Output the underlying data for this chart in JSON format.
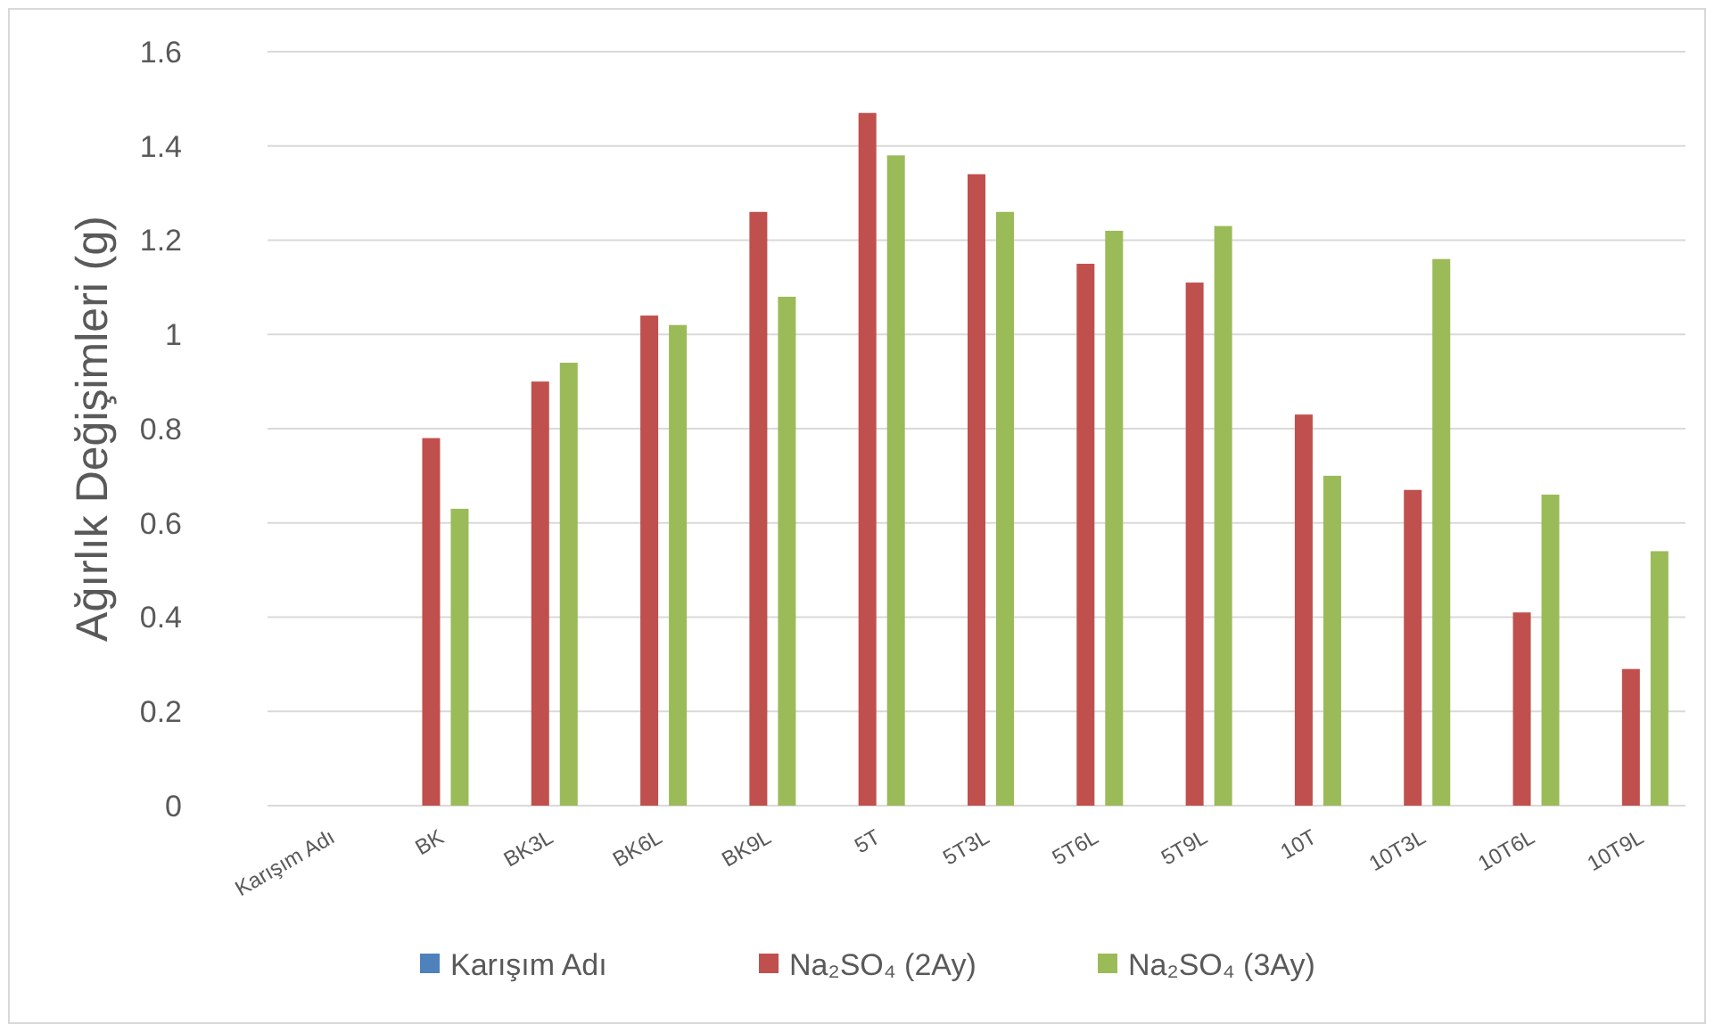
{
  "chart_data": {
    "type": "bar",
    "ylabel": "Ağırlık Değişimleri (g)",
    "categories": [
      "Karışım Adı",
      "BK",
      "BK3L",
      "BK6L",
      "BK9L",
      "5T",
      "5T3L",
      "5T6L",
      "5T9L",
      "10T",
      "10T3L",
      "10T6L",
      "10T9L"
    ],
    "series": [
      {
        "name": "Karışım Adı",
        "color": "#4f81bd",
        "values": [
          null,
          null,
          null,
          null,
          null,
          null,
          null,
          null,
          null,
          null,
          null,
          null,
          null
        ]
      },
      {
        "name": "Na₂SO₄ (2Ay)",
        "color": "#c0504d",
        "values": [
          null,
          0.78,
          0.9,
          1.04,
          1.26,
          1.47,
          1.34,
          1.15,
          1.11,
          0.83,
          0.67,
          0.41,
          0.29
        ]
      },
      {
        "name": "Na₂SO₄ (3Ay)",
        "color": "#9bbb59",
        "values": [
          null,
          0.63,
          0.94,
          1.02,
          1.08,
          1.38,
          1.26,
          1.22,
          1.23,
          0.7,
          1.16,
          0.66,
          0.54
        ]
      }
    ],
    "ylim": [
      0,
      1.6
    ],
    "yticks": [
      0,
      0.2,
      0.4,
      0.6,
      0.8,
      1,
      1.2,
      1.4,
      1.6
    ],
    "grid": "y",
    "legend": "bottom"
  }
}
